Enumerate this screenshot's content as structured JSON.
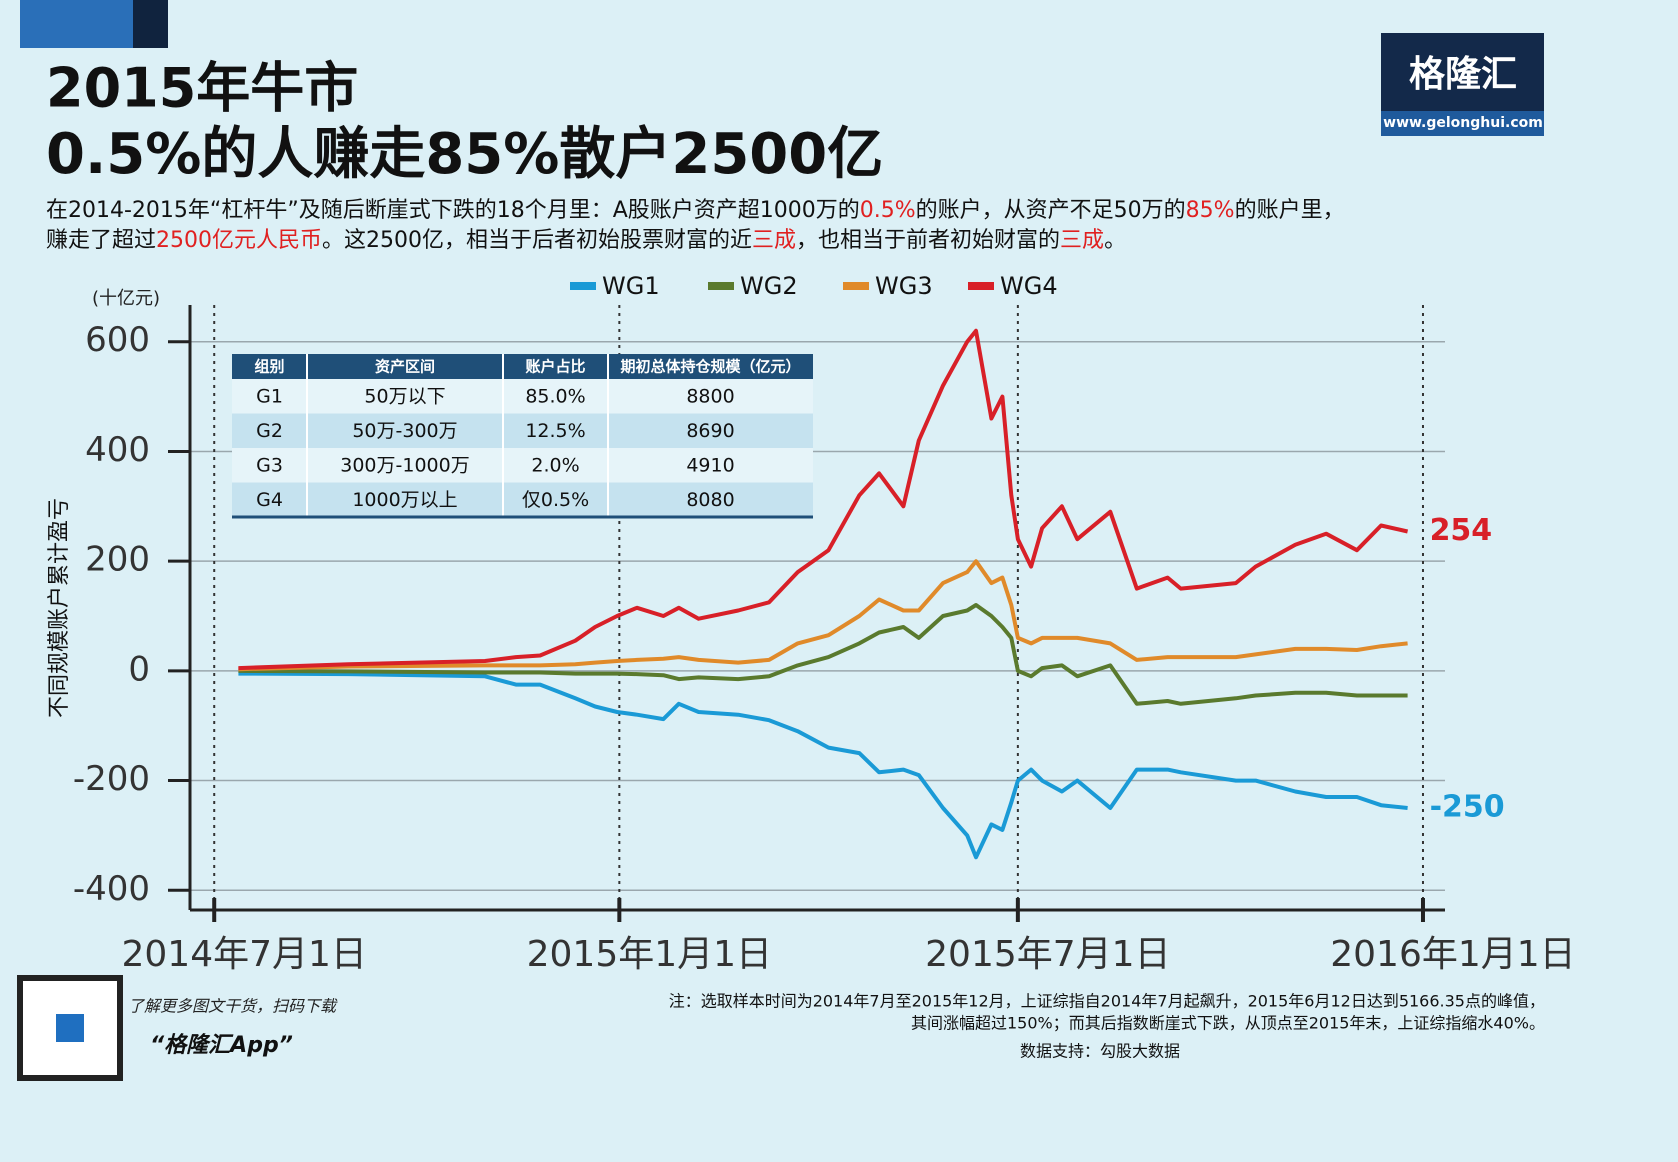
{
  "header": {
    "title_line1": "2015年牛市",
    "title_line2": "0.5%的人赚走85%散户2500亿",
    "logo": "格隆汇",
    "logo_url": "www.gelonghui.com",
    "paragraph": [
      [
        {
          "text": "在2014-2015年“杠杆牛”及随后断崖式下跌的18个月里：A股账户资产超1000万的",
          "color": "#111111"
        },
        {
          "text": "0.5%",
          "color": "#e02020"
        },
        {
          "text": "的账户，从资产不足50万的",
          "color": "#111111"
        },
        {
          "text": "85%",
          "color": "#e02020"
        },
        {
          "text": "的账户里，",
          "color": "#111111"
        }
      ],
      [
        {
          "text": "赚走了超过",
          "color": "#111111"
        },
        {
          "text": "2500亿元人民币",
          "color": "#e02020"
        },
        {
          "text": "。这2500亿，相当于后者初始股票财富的近",
          "color": "#111111"
        },
        {
          "text": "三成",
          "color": "#e02020"
        },
        {
          "text": "，也相当于前者初始财富的",
          "color": "#111111"
        },
        {
          "text": "三成",
          "color": "#e02020"
        },
        {
          "text": "。",
          "color": "#111111"
        }
      ]
    ]
  },
  "chart_data": {
    "type": "line",
    "y_label": "不同规模账户累计盈亏",
    "y_unit": "(十亿元)",
    "x": [
      "2014-07-12",
      "2014-08-31",
      "2014-11-01",
      "2014-11-15",
      "2014-11-26",
      "2014-12-12",
      "2014-12-21",
      "2014-12-31",
      "2015-01-09",
      "2015-01-21",
      "2015-01-28",
      "2015-02-06",
      "2015-02-24",
      "2015-03-10",
      "2015-03-23",
      "2015-04-06",
      "2015-04-20",
      "2015-04-29",
      "2015-05-10",
      "2015-05-17",
      "2015-05-28",
      "2015-06-08",
      "2015-06-12",
      "2015-06-19",
      "2015-06-24",
      "2015-06-28",
      "2015-07-01",
      "2015-07-07",
      "2015-07-12",
      "2015-07-21",
      "2015-07-28",
      "2015-08-12",
      "2015-08-24",
      "2015-09-07",
      "2015-09-13",
      "2015-10-08",
      "2015-10-17",
      "2015-11-04",
      "2015-11-18",
      "2015-12-02",
      "2015-12-13",
      "2015-12-25"
    ],
    "series": [
      {
        "name": "WG1",
        "color": "#1a9ad6",
        "label_last": true,
        "values": [
          -5,
          -6,
          -10,
          -25,
          -25,
          -50,
          -65,
          -75,
          -80,
          -88,
          -60,
          -75,
          -80,
          -90,
          -110,
          -140,
          -150,
          -185,
          -180,
          -190,
          -250,
          -300,
          -340,
          -280,
          -290,
          -240,
          -200,
          -180,
          -200,
          -220,
          -200,
          -250,
          -180,
          -180,
          -185,
          -200,
          -200,
          -220,
          -230,
          -230,
          -245,
          -250
        ]
      },
      {
        "name": "WG2",
        "color": "#5a7a2e",
        "label_last": false,
        "values": [
          0,
          -1,
          -3,
          -3,
          -3,
          -5,
          -5,
          -5,
          -6,
          -8,
          -15,
          -12,
          -15,
          -10,
          10,
          25,
          50,
          70,
          80,
          60,
          100,
          110,
          120,
          100,
          80,
          60,
          0,
          -10,
          5,
          10,
          -10,
          10,
          -60,
          -55,
          -60,
          -50,
          -45,
          -40,
          -40,
          -45,
          -45,
          -45
        ]
      },
      {
        "name": "WG3",
        "color": "#e08a2a",
        "label_last": false,
        "values": [
          3,
          8,
          10,
          10,
          10,
          12,
          15,
          18,
          20,
          22,
          25,
          20,
          15,
          20,
          50,
          65,
          100,
          130,
          110,
          110,
          160,
          180,
          200,
          160,
          170,
          120,
          60,
          50,
          60,
          60,
          60,
          50,
          20,
          25,
          25,
          25,
          30,
          40,
          40,
          38,
          45,
          50
        ]
      },
      {
        "name": "WG4",
        "color": "#d82028",
        "label_last": true,
        "values": [
          5,
          12,
          18,
          25,
          28,
          55,
          80,
          100,
          115,
          100,
          115,
          95,
          110,
          125,
          180,
          220,
          320,
          360,
          300,
          420,
          520,
          600,
          620,
          460,
          500,
          320,
          240,
          190,
          260,
          300,
          240,
          290,
          150,
          170,
          150,
          160,
          190,
          230,
          250,
          220,
          265,
          254
        ]
      }
    ],
    "xlim": [
      "2014-06-20",
      "2016-01-11"
    ],
    "xticks": [
      {
        "value": "2014-07-01",
        "label": "2014年7月1日"
      },
      {
        "value": "2015-01-01",
        "label": "2015年1月1日"
      },
      {
        "value": "2015-07-01",
        "label": "2015年7月1日"
      },
      {
        "value": "2016-01-01",
        "label": "2016年1月1日"
      }
    ],
    "ylim": [
      -436,
      667
    ],
    "yticks": [
      -400,
      -200,
      0,
      200,
      400,
      600
    ],
    "grid": true,
    "legend": "top"
  },
  "table": {
    "columns": [
      "组别",
      "资产区间",
      "账户占比",
      "期初总体持仓规模（亿元）"
    ],
    "rows": [
      [
        "G1",
        "50万以下",
        "85.0%",
        "8800"
      ],
      [
        "G2",
        "50万-300万",
        "12.5%",
        "8690"
      ],
      [
        "G3",
        "300万-1000万",
        "2.0%",
        "4910"
      ],
      [
        "G4",
        "1000万以上",
        "仅0.5%",
        "8080"
      ]
    ]
  },
  "footer": {
    "qr_caption": "了解更多图文干货，扫码下载",
    "app_name": "“格隆汇App”",
    "note_lines": [
      "注：选取样本时间为2014年7月至2015年12月，上证综指自2014年7月起飙升，2015年6月12日达到5166.35点的峰值，",
      "其间涨幅超过150%；而其后指数断崖式下跌，从顶点至2015年末，上证综指缩水40%。"
    ],
    "source": "数据支持：勾股大数据"
  }
}
